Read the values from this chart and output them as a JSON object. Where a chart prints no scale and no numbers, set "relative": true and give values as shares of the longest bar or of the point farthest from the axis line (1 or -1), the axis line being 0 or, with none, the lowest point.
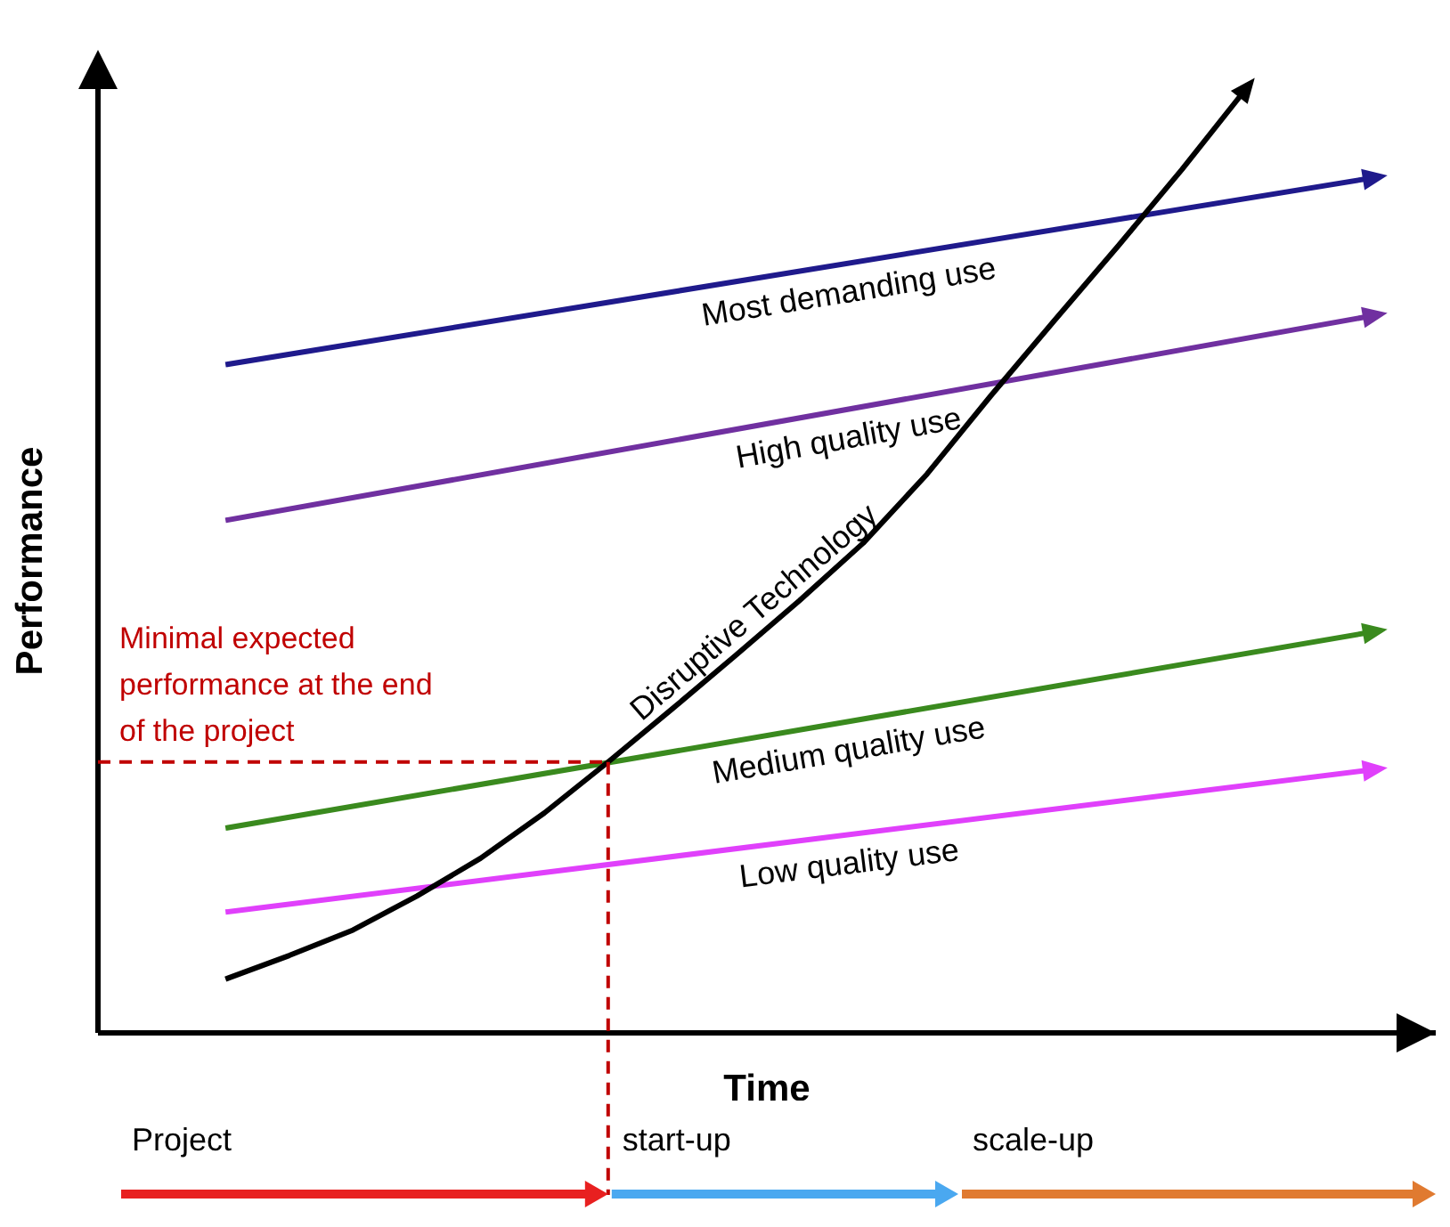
{
  "chart_data": {
    "type": "line",
    "relative": true,
    "xlabel": "Time",
    "ylabel": "Performance",
    "categories": [
      null,
      null,
      null,
      null,
      null,
      null,
      null,
      null,
      null,
      null,
      null,
      null,
      null,
      null,
      null,
      null,
      null,
      null,
      null,
      null,
      null
    ],
    "grid": false,
    "legend": false,
    "line_style": "solid",
    "series": [
      {
        "name": "Most demanding use",
        "color": "#1f1a8c",
        "values": [
          null,
          null,
          0.708,
          null,
          null,
          null,
          null,
          null,
          null,
          null,
          null,
          null,
          null,
          null,
          null,
          null,
          null,
          null,
          null,
          null,
          0.906
        ]
      },
      {
        "name": "High quality use",
        "color": "#7030a0",
        "values": [
          null,
          null,
          0.543,
          null,
          null,
          null,
          null,
          null,
          null,
          null,
          null,
          null,
          null,
          null,
          null,
          null,
          null,
          null,
          null,
          null,
          0.76
        ]
      },
      {
        "name": "Medium quality use",
        "color": "#3a8a1e",
        "values": [
          null,
          null,
          0.217,
          null,
          null,
          null,
          null,
          null,
          null,
          null,
          null,
          null,
          null,
          null,
          null,
          null,
          null,
          null,
          null,
          null,
          0.425
        ]
      },
      {
        "name": "Low quality use",
        "color": "#e040fb",
        "values": [
          null,
          null,
          0.128,
          null,
          null,
          null,
          null,
          null,
          null,
          null,
          null,
          null,
          null,
          null,
          null,
          null,
          null,
          null,
          null,
          null,
          0.279
        ]
      },
      {
        "name": "Disruptive Technology",
        "color": "#000000",
        "values": [
          null,
          null,
          0.057,
          0.082,
          0.109,
          0.145,
          0.185,
          0.233,
          0.287,
          0.343,
          0.4,
          0.458,
          0.519,
          0.592,
          0.675,
          0.755,
          0.834,
          0.915,
          1,
          null,
          null
        ]
      }
    ],
    "ref_lines": [
      {
        "axis": "y",
        "value": 0.287,
        "label": "Minimal expected performance at the end of the project",
        "color": "#c00000",
        "line_style": "dashed"
      }
    ],
    "annotations": [
      "Project",
      "start-up",
      "scale-up"
    ]
  }
}
